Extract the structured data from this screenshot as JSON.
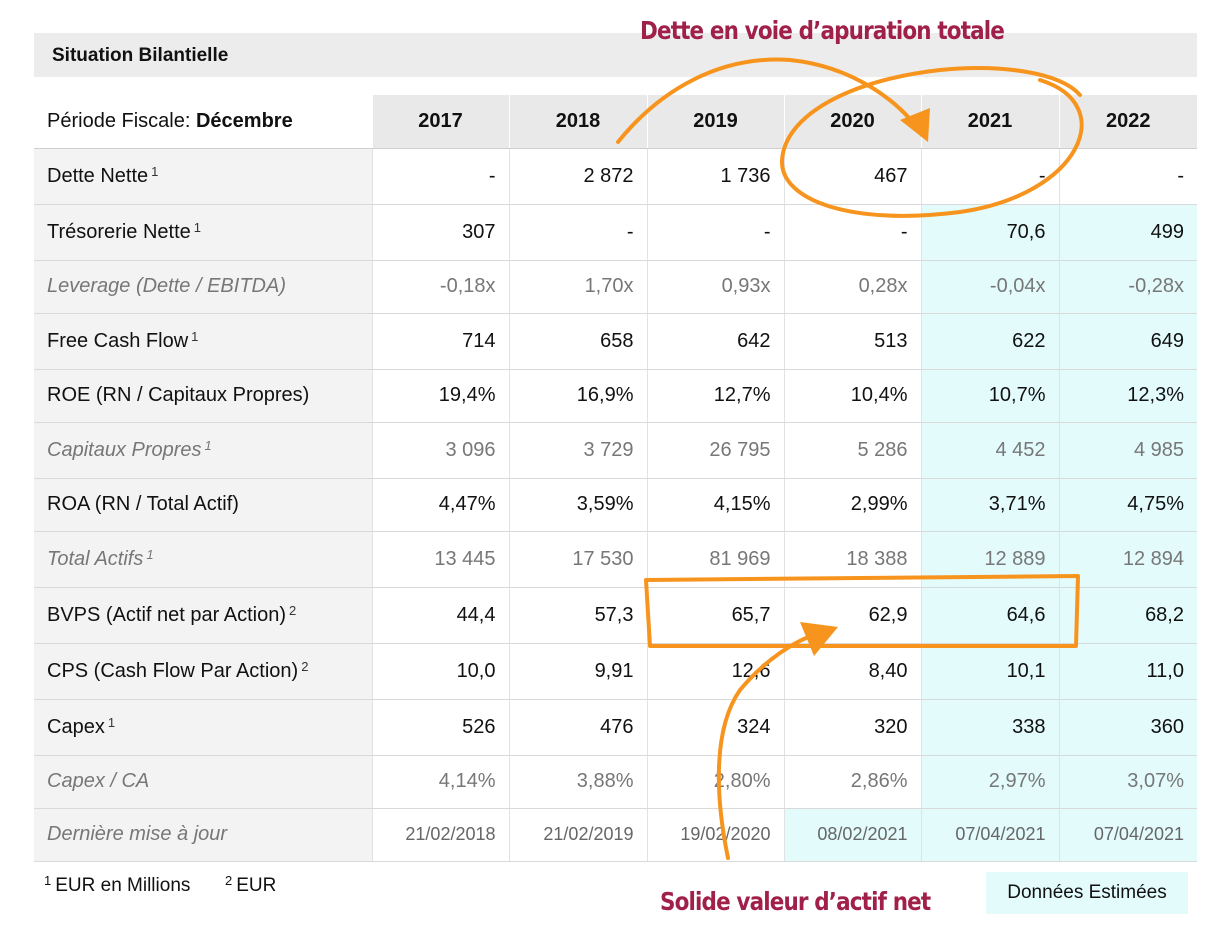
{
  "section_title": "Situation Bilantielle",
  "period": {
    "label": "Période Fiscale: ",
    "value": "Décembre"
  },
  "years": [
    "2017",
    "2018",
    "2019",
    "2020",
    "2021",
    "2022"
  ],
  "estimated_years": [
    "2021",
    "2022"
  ],
  "rows": [
    {
      "label": "Dette Nette",
      "sup": "1",
      "style": "normal",
      "values": [
        "-",
        "2 872",
        "1 736",
        "467",
        "-",
        "-"
      ]
    },
    {
      "label": "Trésorerie Nette",
      "sup": "1",
      "style": "normal",
      "values": [
        "307",
        "-",
        "-",
        "-",
        "70,6",
        "499"
      ]
    },
    {
      "label": "Leverage (Dette / EBITDA)",
      "sup": "",
      "style": "italic",
      "values": [
        "-0,18x",
        "1,70x",
        "0,93x",
        "0,28x",
        "-0,04x",
        "-0,28x"
      ]
    },
    {
      "label": "Free Cash Flow",
      "sup": "1",
      "style": "normal",
      "values": [
        "714",
        "658",
        "642",
        "513",
        "622",
        "649"
      ]
    },
    {
      "label": "ROE (RN / Capitaux Propres)",
      "sup": "",
      "style": "normal",
      "values": [
        "19,4%",
        "16,9%",
        "12,7%",
        "10,4%",
        "10,7%",
        "12,3%"
      ]
    },
    {
      "label": "Capitaux Propres",
      "sup": "1",
      "style": "italic",
      "values": [
        "3 096",
        "3 729",
        "26 795",
        "5 286",
        "4 452",
        "4 985"
      ]
    },
    {
      "label": "ROA (RN / Total Actif)",
      "sup": "",
      "style": "normal",
      "values": [
        "4,47%",
        "3,59%",
        "4,15%",
        "2,99%",
        "3,71%",
        "4,75%"
      ]
    },
    {
      "label": "Total Actifs",
      "sup": "1",
      "style": "italic",
      "values": [
        "13 445",
        "17 530",
        "81 969",
        "18 388",
        "12 889",
        "12 894"
      ]
    },
    {
      "label": "BVPS (Actif net par Action)",
      "sup": "2",
      "style": "normal",
      "values": [
        "44,4",
        "57,3",
        "65,7",
        "62,9",
        "64,6",
        "68,2"
      ]
    },
    {
      "label": "CPS (Cash Flow Par Action)",
      "sup": "2",
      "style": "normal",
      "values": [
        "10,0",
        "9,91",
        "12,6",
        "8,40",
        "10,1",
        "11,0"
      ]
    },
    {
      "label": "Capex",
      "sup": "1",
      "style": "normal",
      "values": [
        "526",
        "476",
        "324",
        "320",
        "338",
        "360"
      ]
    },
    {
      "label": "Capex / CA",
      "sup": "",
      "style": "italic",
      "values": [
        "4,14%",
        "3,88%",
        "2,80%",
        "2,86%",
        "2,97%",
        "3,07%"
      ]
    },
    {
      "label": "Dernière mise à jour",
      "sup": "",
      "style": "update",
      "values": [
        "21/02/2018",
        "21/02/2019",
        "19/02/2020",
        "08/02/2021",
        "07/04/2021",
        "07/04/2021"
      ]
    }
  ],
  "highlight_cells": {
    "update_row_estimated": [
      "08/02/2021",
      "07/04/2021",
      "07/04/2021"
    ]
  },
  "footnotes": {
    "n1": "1",
    "t1": "EUR en Millions",
    "n2": "2",
    "t2": "EUR"
  },
  "estimated_label": "Données Estimées",
  "annotations": {
    "top": "Dette en voie d’apuration totale",
    "bottom": "Solide valeur d’actif net"
  },
  "colors": {
    "annotation_text": "#a0204a",
    "annotation_stroke": "#f7941d",
    "estimated_bg": "#e3fbfb",
    "header_bg": "#e9e9e9"
  }
}
